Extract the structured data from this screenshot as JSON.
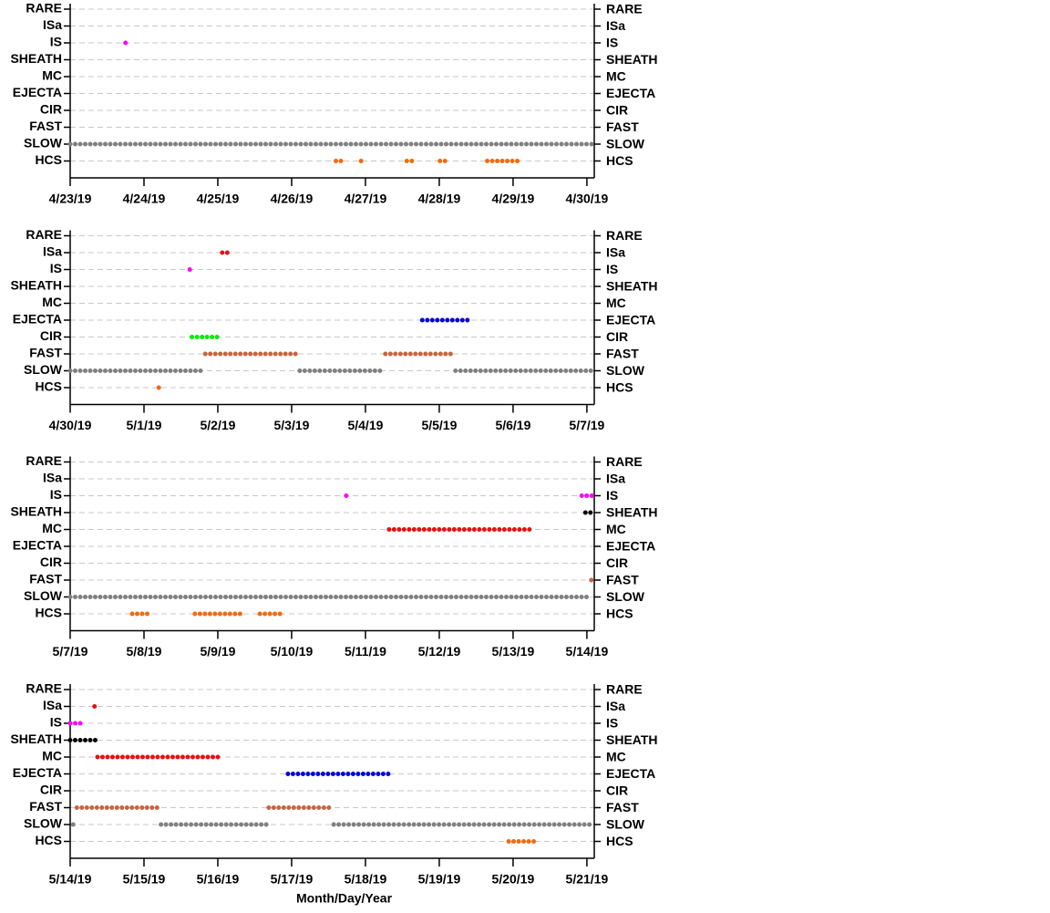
{
  "chart_data": [
    {
      "type": "interval",
      "categories": [
        "RARE",
        "ISa",
        "IS",
        "SHEATH",
        "MC",
        "EJECTA",
        "CIR",
        "FAST",
        "SLOW",
        "HCS"
      ],
      "xlim": [
        0,
        7.1
      ],
      "xticks": [
        {
          "value": 0,
          "label": "4/23/19"
        },
        {
          "value": 1,
          "label": "4/24/19"
        },
        {
          "value": 2,
          "label": "4/25/19"
        },
        {
          "value": 3,
          "label": "4/26/19"
        },
        {
          "value": 4,
          "label": "4/27/19"
        },
        {
          "value": 5,
          "label": "4/28/19"
        },
        {
          "value": 6,
          "label": "4/29/19"
        },
        {
          "value": 7,
          "label": "4/30/19"
        }
      ],
      "segments": [
        {
          "category": "IS",
          "start": 0.75,
          "end": 0.75,
          "color": "#ff00ff"
        },
        {
          "category": "SLOW",
          "start": 0,
          "end": 7.1,
          "color": "#808080"
        },
        {
          "category": "HCS",
          "start": 3.6,
          "end": 3.67,
          "color": "#f26a10"
        },
        {
          "category": "HCS",
          "start": 3.94,
          "end": 4.0,
          "color": "#f26a10"
        },
        {
          "category": "HCS",
          "start": 4.56,
          "end": 4.67,
          "color": "#f26a10"
        },
        {
          "category": "HCS",
          "start": 5.01,
          "end": 5.09,
          "color": "#f26a10"
        },
        {
          "category": "HCS",
          "start": 5.65,
          "end": 6.09,
          "color": "#f26a10"
        }
      ]
    },
    {
      "type": "interval",
      "categories": [
        "RARE",
        "ISa",
        "IS",
        "SHEATH",
        "MC",
        "EJECTA",
        "CIR",
        "FAST",
        "SLOW",
        "HCS"
      ],
      "xlim": [
        0,
        7.1
      ],
      "xticks": [
        {
          "value": 0,
          "label": "4/30/19"
        },
        {
          "value": 1,
          "label": "5/1/19"
        },
        {
          "value": 2,
          "label": "5/2/19"
        },
        {
          "value": 3,
          "label": "5/3/19"
        },
        {
          "value": 4,
          "label": "5/4/19"
        },
        {
          "value": 5,
          "label": "5/5/19"
        },
        {
          "value": 6,
          "label": "5/6/19"
        },
        {
          "value": 7,
          "label": "5/7/19"
        }
      ],
      "segments": [
        {
          "category": "ISa",
          "start": 2.06,
          "end": 2.17,
          "color": "#e81010"
        },
        {
          "category": "IS",
          "start": 1.62,
          "end": 1.62,
          "color": "#ff00ff"
        },
        {
          "category": "EJECTA",
          "start": 4.77,
          "end": 5.41,
          "color": "#0000dd"
        },
        {
          "category": "CIR",
          "start": 1.65,
          "end": 2.05,
          "color": "#00ee00"
        },
        {
          "category": "FAST",
          "start": 1.83,
          "end": 3.09,
          "color": "#c8643c"
        },
        {
          "category": "FAST",
          "start": 4.27,
          "end": 5.22,
          "color": "#c8643c"
        },
        {
          "category": "SLOW",
          "start": 0,
          "end": 1.81,
          "color": "#808080"
        },
        {
          "category": "SLOW",
          "start": 3.11,
          "end": 4.26,
          "color": "#808080"
        },
        {
          "category": "SLOW",
          "start": 5.22,
          "end": 7.1,
          "color": "#808080"
        },
        {
          "category": "HCS",
          "start": 1.2,
          "end": 1.26,
          "color": "#f26a10"
        }
      ]
    },
    {
      "type": "interval",
      "categories": [
        "RARE",
        "ISa",
        "IS",
        "SHEATH",
        "MC",
        "EJECTA",
        "CIR",
        "FAST",
        "SLOW",
        "HCS"
      ],
      "xlim": [
        0,
        7.1
      ],
      "xticks": [
        {
          "value": 0,
          "label": "5/7/19"
        },
        {
          "value": 1,
          "label": "5/8/19"
        },
        {
          "value": 2,
          "label": "5/9/19"
        },
        {
          "value": 3,
          "label": "5/10/19"
        },
        {
          "value": 4,
          "label": "5/11/19"
        },
        {
          "value": 5,
          "label": "5/12/19"
        },
        {
          "value": 6,
          "label": "5/13/19"
        },
        {
          "value": 7,
          "label": "5/14/19"
        }
      ],
      "segments": [
        {
          "category": "IS",
          "start": 3.74,
          "end": 3.74,
          "color": "#ff00ff"
        },
        {
          "category": "IS",
          "start": 6.93,
          "end": 7.1,
          "color": "#ff00ff"
        },
        {
          "category": "SHEATH",
          "start": 6.98,
          "end": 7.1,
          "color": "#000000"
        },
        {
          "category": "MC",
          "start": 4.32,
          "end": 6.25,
          "color": "#e81010"
        },
        {
          "category": "FAST",
          "start": 7.06,
          "end": 7.1,
          "color": "#c8643c"
        },
        {
          "category": "SLOW",
          "start": 0,
          "end": 7.05,
          "color": "#808080"
        },
        {
          "category": "HCS",
          "start": 0.84,
          "end": 1.05,
          "color": "#f26a10"
        },
        {
          "category": "HCS",
          "start": 1.69,
          "end": 2.35,
          "color": "#f26a10"
        },
        {
          "category": "HCS",
          "start": 2.57,
          "end": 2.89,
          "color": "#f26a10"
        }
      ]
    },
    {
      "type": "interval",
      "categories": [
        "RARE",
        "ISa",
        "IS",
        "SHEATH",
        "MC",
        "EJECTA",
        "CIR",
        "FAST",
        "SLOW",
        "HCS"
      ],
      "xlabel": "Month/Day/Year",
      "xlim": [
        0,
        7.1
      ],
      "xticks": [
        {
          "value": 0,
          "label": "5/14/19"
        },
        {
          "value": 1,
          "label": "5/15/19"
        },
        {
          "value": 2,
          "label": "5/16/19"
        },
        {
          "value": 3,
          "label": "5/17/19"
        },
        {
          "value": 4,
          "label": "5/18/19"
        },
        {
          "value": 5,
          "label": "5/19/19"
        },
        {
          "value": 6,
          "label": "5/20/19"
        },
        {
          "value": 7,
          "label": "5/21/19"
        }
      ],
      "segments": [
        {
          "category": "ISa",
          "start": 0.33,
          "end": 0.33,
          "color": "#e81010"
        },
        {
          "category": "IS",
          "start": 0,
          "end": 0.19,
          "color": "#ff00ff"
        },
        {
          "category": "SHEATH",
          "start": 0,
          "end": 0.35,
          "color": "#000000"
        },
        {
          "category": "MC",
          "start": 0.37,
          "end": 2.01,
          "color": "#e81010"
        },
        {
          "category": "EJECTA",
          "start": 2.95,
          "end": 4.33,
          "color": "#0000dd"
        },
        {
          "category": "FAST",
          "start": 0.09,
          "end": 1.23,
          "color": "#c8643c"
        },
        {
          "category": "FAST",
          "start": 2.69,
          "end": 3.56,
          "color": "#c8643c"
        },
        {
          "category": "SLOW",
          "start": 0.04,
          "end": 0.04,
          "color": "#808080"
        },
        {
          "category": "SLOW",
          "start": 1.23,
          "end": 2.69,
          "color": "#808080"
        },
        {
          "category": "SLOW",
          "start": 3.57,
          "end": 7.1,
          "color": "#808080"
        },
        {
          "category": "HCS",
          "start": 5.94,
          "end": 6.3,
          "color": "#f26a10"
        }
      ]
    }
  ]
}
